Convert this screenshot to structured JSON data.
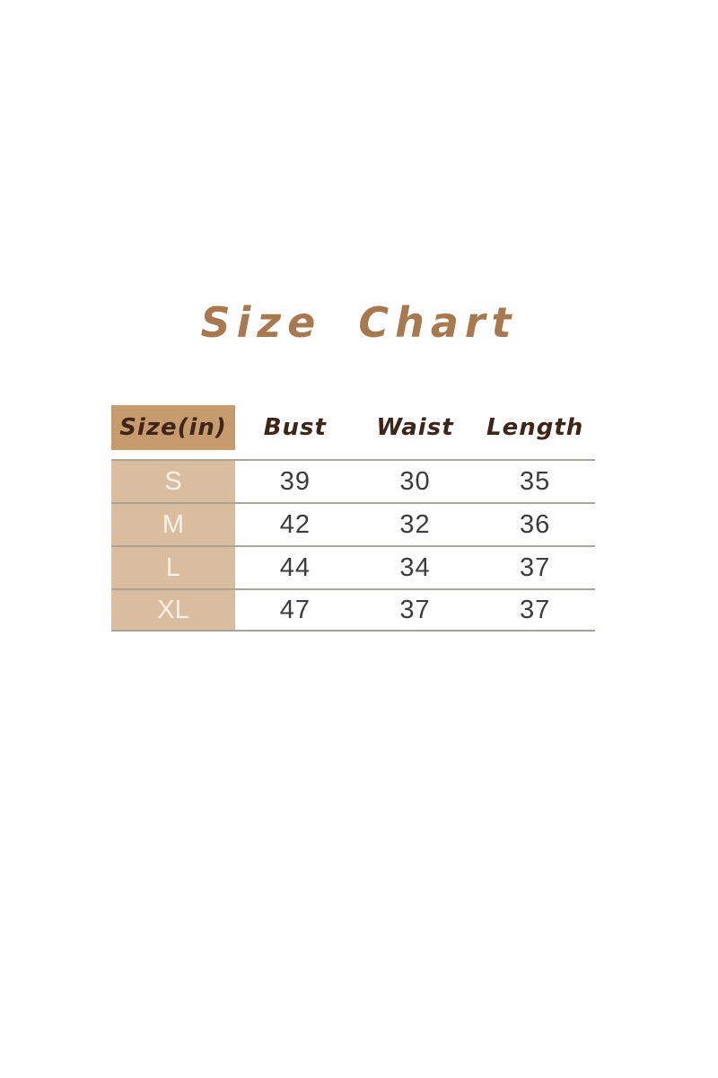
{
  "title": {
    "text": "Size Chart"
  },
  "chart_data": {
    "type": "table",
    "title": "Size Chart",
    "columns": [
      "Size(in)",
      "Bust",
      "Waist",
      "Length"
    ],
    "rows": [
      [
        "S",
        "39",
        "30",
        "35"
      ],
      [
        "M",
        "42",
        "32",
        "36"
      ],
      [
        "L",
        "44",
        "34",
        "37"
      ],
      [
        "XL",
        "47",
        "37",
        "37"
      ]
    ],
    "units_note": "inches (from header label Size(in))"
  },
  "colors": {
    "title_text": "#A8794E",
    "header_cell_bg": "#C69C6E",
    "header_text": "#3F2517",
    "size_column_bg": "#D9BD9E",
    "size_column_text": "#F7F1E8",
    "value_text": "#3C3C3C",
    "divider": "#A9A29A",
    "page_bg": "#FFFFFF"
  }
}
